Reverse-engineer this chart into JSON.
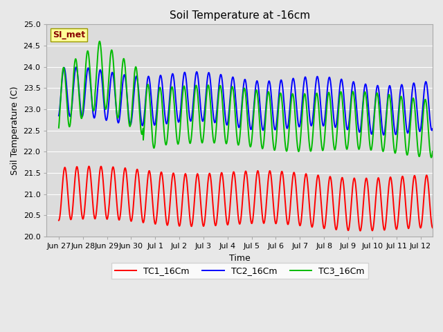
{
  "title": "Soil Temperature at -16cm",
  "xlabel": "Time",
  "ylabel": "Soil Temperature (C)",
  "ylim": [
    20.0,
    25.0
  ],
  "yticks": [
    20.0,
    20.5,
    21.0,
    21.5,
    22.0,
    22.5,
    23.0,
    23.5,
    24.0,
    24.5,
    25.0
  ],
  "fig_bg_color": "#e8e8e8",
  "plot_bg_color": "#dcdcdc",
  "grid_color": "#ffffff",
  "tc1_color": "#ff0000",
  "tc2_color": "#0000ff",
  "tc3_color": "#00bb00",
  "line_width": 1.4,
  "annotation_text": "SI_met",
  "annotation_box_color": "#ffff99",
  "annotation_box_edge": "#999900",
  "annotation_text_color": "#880000",
  "x_tick_labels": [
    "Jun 27",
    "Jun 28",
    "Jun 29",
    "Jun 30",
    "Jul 1",
    "Jul 2",
    "Jul 3",
    "Jul 4",
    "Jul 5",
    "Jul 6",
    "Jul 7",
    "Jul 8",
    "Jul 9",
    "Jul 10",
    "Jul 11",
    "Jul 12"
  ],
  "x_tick_positions": [
    0,
    1,
    2,
    3,
    4,
    5,
    6,
    7,
    8,
    9,
    10,
    11,
    12,
    13,
    14,
    15
  ]
}
